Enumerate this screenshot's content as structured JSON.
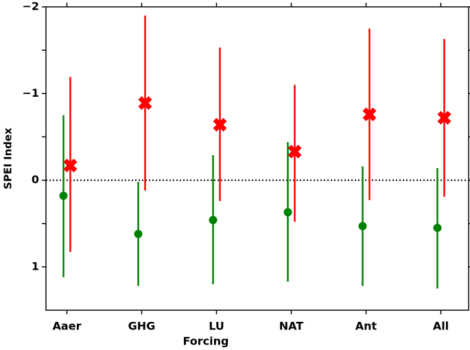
{
  "chart_data": {
    "type": "errorbar",
    "x_label": "Forcing",
    "y_label": "SPEI Index",
    "categories": [
      "Aaer",
      "GHG",
      "LU",
      "NAT",
      "Ant",
      "All"
    ],
    "series": [
      {
        "color": "#008000",
        "marker": "circle",
        "values": [
          0.18,
          0.62,
          0.46,
          0.37,
          0.53,
          0.55
        ],
        "lower": [
          -0.75,
          0.02,
          -0.29,
          -0.44,
          -0.16,
          -0.14
        ],
        "upper": [
          1.12,
          1.22,
          1.2,
          1.17,
          1.22,
          1.25
        ]
      },
      {
        "color": "#ff0000",
        "marker": "x",
        "values": [
          -0.17,
          -0.89,
          -0.64,
          -0.33,
          -0.76,
          -0.72
        ],
        "lower": [
          -1.19,
          -1.9,
          -1.53,
          -1.1,
          -1.75,
          -1.63
        ],
        "upper": [
          0.83,
          0.12,
          0.24,
          0.48,
          0.23,
          0.19
        ]
      }
    ],
    "ylim": [
      -2,
      1.5
    ],
    "y_inverted": true,
    "yticks": [
      {
        "value": -2,
        "label": "−2"
      },
      {
        "value": -1,
        "label": "−1"
      },
      0,
      1
    ],
    "yminor": [
      -1.5,
      -0.5,
      0.5
    ],
    "hline": 0
  }
}
